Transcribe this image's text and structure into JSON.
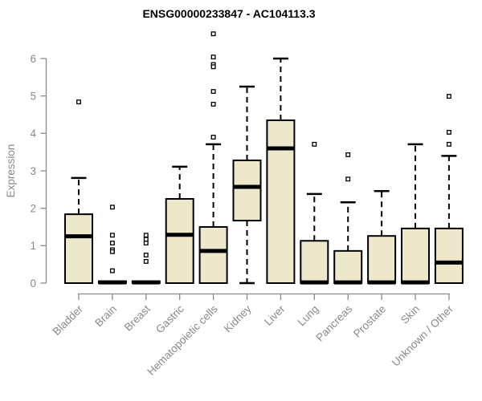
{
  "chart_data": {
    "type": "boxplot",
    "title": "ENSG00000233847 - AC104113.3",
    "xlabel": "",
    "ylabel": "Expression",
    "ylim": [
      0,
      6
    ],
    "yticks": [
      "0",
      "1",
      "2",
      "3",
      "4",
      "5",
      "6"
    ],
    "grid": false,
    "legend": "none",
    "colors": {
      "box_fill": "#EDE7CB",
      "box_border": "#000000",
      "median": "#000000",
      "whisker": "#000000",
      "axis": "#8A8A8A",
      "axis_text": "#8A8A8A",
      "title_text": "#000000",
      "background": "#FFFFFF"
    },
    "categories": [
      "Bladder",
      "Brain",
      "Breast",
      "Gastric",
      "Hematopoietic cells",
      "Kidney",
      "Liver",
      "Lung",
      "Pancreas",
      "Prostate",
      "Skin",
      "Unknown / Other"
    ],
    "series": [
      {
        "category": "Bladder",
        "whisker_low": 0,
        "q1": 0,
        "median": 1.25,
        "q3": 1.84,
        "whisker_high": 2.81,
        "outliers": [
          4.84
        ]
      },
      {
        "category": "Brain",
        "whisker_low": 0,
        "q1": 0,
        "median": 0.02,
        "q3": 0.05,
        "whisker_high": 0.05,
        "outliers": [
          2.03,
          1.28,
          1.07,
          0.89,
          0.84,
          0.33
        ]
      },
      {
        "category": "Breast",
        "whisker_low": 0,
        "q1": 0,
        "median": 0.02,
        "q3": 0.05,
        "whisker_high": 0.05,
        "outliers": [
          1.28,
          1.17,
          1.07,
          0.75,
          0.58
        ]
      },
      {
        "category": "Gastric",
        "whisker_low": 0,
        "q1": 0,
        "median": 1.29,
        "q3": 2.25,
        "whisker_high": 3.11,
        "outliers": []
      },
      {
        "category": "Hematopoietic cells",
        "whisker_low": 0,
        "q1": 0,
        "median": 0.86,
        "q3": 1.5,
        "whisker_high": 3.71,
        "outliers": [
          6.66,
          6.04,
          5.84,
          5.78,
          5.12,
          4.78,
          3.9
        ]
      },
      {
        "category": "Kidney",
        "whisker_low": 0,
        "q1": 1.67,
        "median": 2.57,
        "q3": 3.28,
        "whisker_high": 5.25,
        "outliers": []
      },
      {
        "category": "Liver",
        "whisker_low": 0,
        "q1": 0,
        "median": 3.6,
        "q3": 4.35,
        "whisker_high": 6.0,
        "outliers": []
      },
      {
        "category": "Lung",
        "whisker_low": 0,
        "q1": 0,
        "median": 0.02,
        "q3": 1.13,
        "whisker_high": 2.38,
        "outliers": [
          3.71
        ]
      },
      {
        "category": "Pancreas",
        "whisker_low": 0,
        "q1": 0,
        "median": 0.02,
        "q3": 0.86,
        "whisker_high": 2.16,
        "outliers": [
          3.43,
          2.78
        ]
      },
      {
        "category": "Prostate",
        "whisker_low": 0,
        "q1": 0,
        "median": 0.02,
        "q3": 1.26,
        "whisker_high": 2.46,
        "outliers": []
      },
      {
        "category": "Skin",
        "whisker_low": 0,
        "q1": 0,
        "median": 0.02,
        "q3": 1.46,
        "whisker_high": 3.71,
        "outliers": []
      },
      {
        "category": "Unknown / Other",
        "whisker_low": 0,
        "q1": 0,
        "median": 0.55,
        "q3": 1.46,
        "whisker_high": 3.4,
        "outliers": [
          4.99,
          4.03,
          3.71
        ]
      }
    ]
  }
}
